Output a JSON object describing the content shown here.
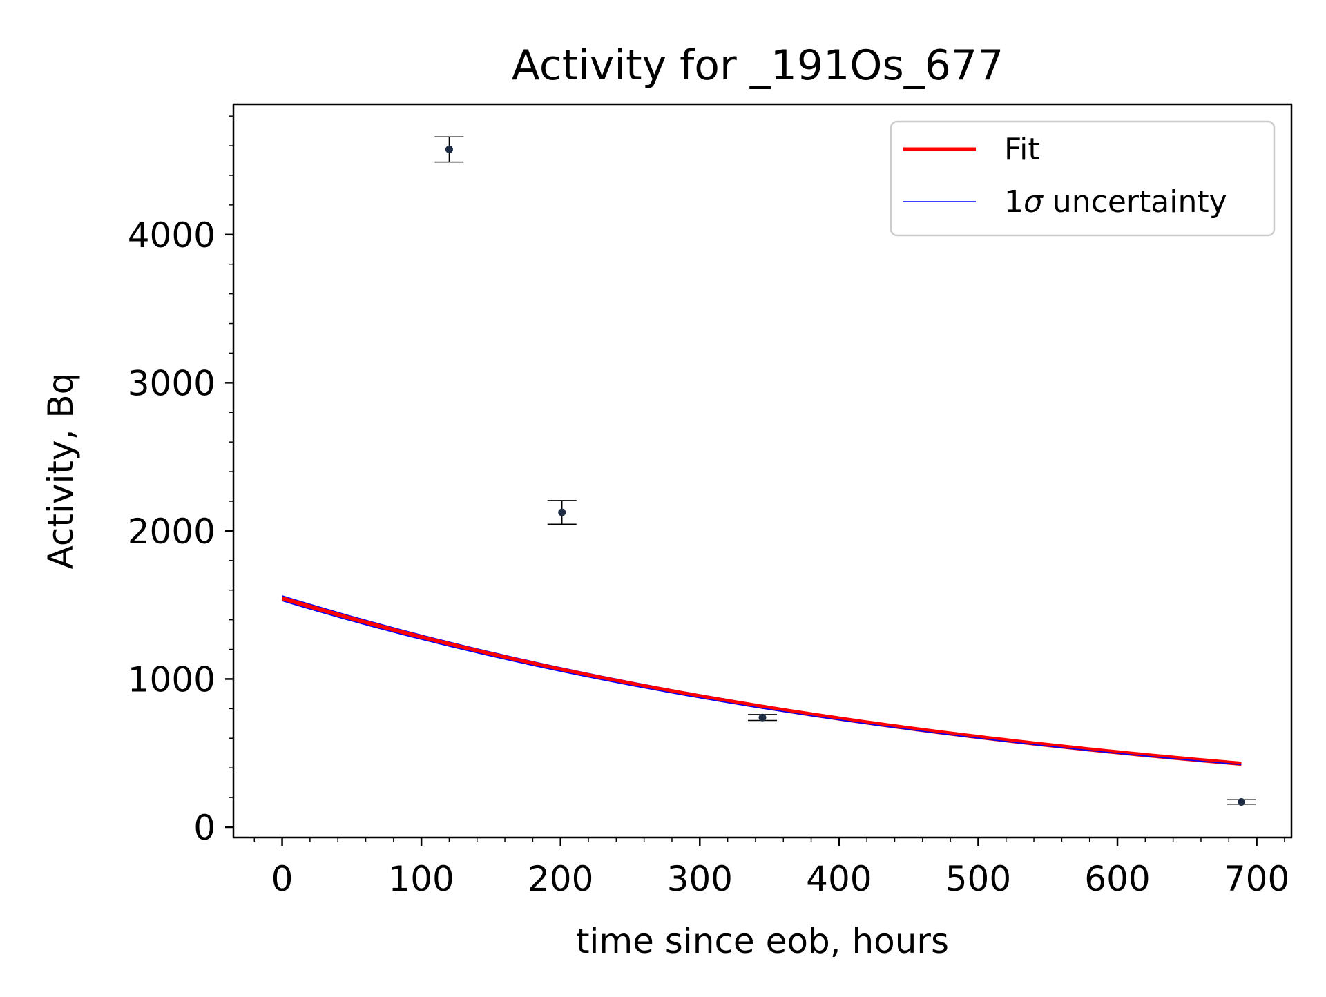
{
  "chart_data": {
    "type": "scatter",
    "title": "Activity for _191Os_677",
    "xlabel": "time since eob, hours",
    "ylabel": "Activity, Bq",
    "xlim": [
      -35,
      725
    ],
    "ylim": [
      -70,
      4880
    ],
    "xticks": [
      0,
      100,
      200,
      300,
      400,
      500,
      600,
      700
    ],
    "yticks": [
      0,
      1000,
      2000,
      3000,
      4000
    ],
    "xtick_labels": [
      "0",
      "100",
      "200",
      "300",
      "400",
      "500",
      "600",
      "700"
    ],
    "ytick_labels": [
      "0",
      "1000",
      "2000",
      "3000",
      "4000"
    ],
    "grid": false,
    "legend_position": "top-right",
    "measurements": {
      "x": [
        120,
        201,
        345,
        689
      ],
      "y": [
        4575,
        2125,
        740,
        170
      ],
      "yerr": [
        85,
        80,
        20,
        15
      ]
    },
    "fit": {
      "name": "Fit",
      "color": "#ff0000",
      "x_range": [
        0,
        689
      ],
      "y_at_x0": 1545,
      "y_at_xmax": 428
    },
    "uncertainty": {
      "name": "1σ uncertainty",
      "color": "#0000ff",
      "upper": {
        "y_at_x0": 1562,
        "y_at_xmax": 434
      },
      "lower": {
        "y_at_x0": 1528,
        "y_at_xmax": 422
      }
    },
    "legend": [
      {
        "label_prefix": "1",
        "label_symbol": "σ",
        "label_rest": " uncertainty"
      }
    ]
  }
}
